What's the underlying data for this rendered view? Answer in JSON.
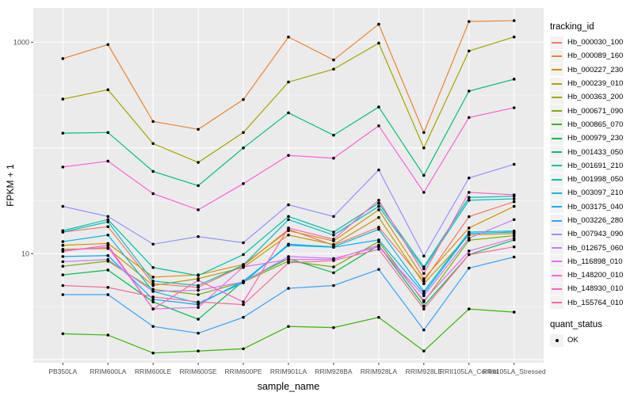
{
  "figure": {
    "background": "#FFFFFF",
    "panel_background": "#EBEBEB",
    "gridline_color": "#FFFFFF",
    "tick_color": "#333333",
    "tick_label_color": "#4D4D4D",
    "axis_title_color": "#000000",
    "point_color": "#000000",
    "legend_key_fill": "#F2F2F2"
  },
  "chart_data": {
    "type": "line",
    "title": "",
    "xlabel": "sample_name",
    "ylabel": "FPKM + 1",
    "y_scale": "log10",
    "ylim": [
      1,
      2200
    ],
    "grid": true,
    "legend_position": "right",
    "y_ticks": [
      {
        "label": "1000",
        "value": 1000
      },
      {
        "label": "10",
        "value": 10
      }
    ],
    "y_major_gridlines": [
      1,
      10,
      100,
      1000
    ],
    "y_minor_gridlines": [
      3.162,
      31.62,
      316.2
    ],
    "categories": [
      "PB350LA",
      "RRIM600LA",
      "RRIM600LE",
      "RRIM600SE",
      "RRIM600PE",
      "RRIM901LA",
      "RRIM928BA",
      "RRIM928LA",
      "RRIM928LE",
      "RRII105LA_Control",
      "RRII105LA_Stressed"
    ],
    "legend_title": "tracking_id",
    "series": [
      {
        "name": "Hb_000030_100",
        "color": "#F8766D",
        "values": [
          16,
          18,
          5.2,
          4.8,
          7.7,
          17,
          12,
          17.8,
          5.5,
          22.4,
          31
        ]
      },
      {
        "name": "Hb_000089_160",
        "color": "#EA8331",
        "values": [
          700,
          950,
          178,
          150,
          287,
          1120,
          680,
          1480,
          140,
          1570,
          1600
        ]
      },
      {
        "name": "Hb_000227_230",
        "color": "#D89000",
        "values": [
          12,
          12.5,
          6.0,
          6.3,
          7.9,
          16.5,
          13.2,
          26,
          5.8,
          17.5,
          28
        ]
      },
      {
        "name": "Hb_000239_010",
        "color": "#C09B00",
        "values": [
          11,
          11.2,
          5.0,
          5.8,
          7.4,
          15,
          12.2,
          22,
          5.2,
          15,
          15.5
        ]
      },
      {
        "name": "Hb_000363_200",
        "color": "#A3A500",
        "values": [
          290,
          355,
          110,
          73,
          140,
          420,
          556,
          980,
          100,
          826,
          1120
        ]
      },
      {
        "name": "Hb_000671_090",
        "color": "#7CAE00",
        "values": [
          7.6,
          8.5,
          4.6,
          4.1,
          5.4,
          8.5,
          7.5,
          13,
          3.5,
          13.4,
          14.8
        ]
      },
      {
        "name": "Hb_000865_070",
        "color": "#39B600",
        "values": [
          1.75,
          1.7,
          1.15,
          1.2,
          1.26,
          2.05,
          2.0,
          2.5,
          1.2,
          3.0,
          2.8
        ]
      },
      {
        "name": "Hb_000979_230",
        "color": "#00BB4E",
        "values": [
          6.3,
          7.0,
          3.5,
          2.4,
          5.5,
          9.0,
          6.6,
          12,
          3.2,
          9.8,
          13.5
        ]
      },
      {
        "name": "Hb_001433_050",
        "color": "#00BF7D",
        "values": [
          138,
          140,
          60,
          44,
          100,
          215,
          132,
          244,
          55,
          345,
          447
        ]
      },
      {
        "name": "Hb_001691_210",
        "color": "#00C1A3",
        "values": [
          16.5,
          21,
          7.4,
          6.2,
          9.8,
          22.5,
          16,
          30,
          7.5,
          34,
          35
        ]
      },
      {
        "name": "Hb_001998_050",
        "color": "#00BFC4",
        "values": [
          16,
          20,
          5.5,
          5.0,
          7.8,
          21,
          15,
          28,
          7.2,
          32,
          33
        ]
      },
      {
        "name": "Hb_003097_210",
        "color": "#00BAE0",
        "values": [
          13,
          15,
          4.4,
          3.4,
          5.3,
          12.3,
          11.6,
          17,
          4.4,
          16,
          16.4
        ]
      },
      {
        "name": "Hb_003175_040",
        "color": "#00B0F6",
        "values": [
          9.4,
          9.6,
          3.7,
          3.3,
          5.5,
          12.0,
          11.5,
          13.5,
          4.2,
          15.5,
          16
        ]
      },
      {
        "name": "Hb_003226_280",
        "color": "#35A2FF",
        "values": [
          4.1,
          4.1,
          2.05,
          1.77,
          2.5,
          4.7,
          5.0,
          7.1,
          1.9,
          7.3,
          9.3
        ]
      },
      {
        "name": "Hb_007943_090",
        "color": "#9590FF",
        "values": [
          28,
          22.5,
          12.3,
          14.5,
          12.7,
          29,
          22.5,
          62,
          9.5,
          52,
          70
        ]
      },
      {
        "name": "Hb_012675_060",
        "color": "#C77CFF",
        "values": [
          8.4,
          8.8,
          4.4,
          4.5,
          5.4,
          9.4,
          9.0,
          11.6,
          4.0,
          14,
          21
        ]
      },
      {
        "name": "Hb_116898_010",
        "color": "#E76BF3",
        "values": [
          10.7,
          11.5,
          3.0,
          3.1,
          7.5,
          8.8,
          8.8,
          12,
          3.6,
          10.6,
          14
        ]
      },
      {
        "name": "Hb_148200_010",
        "color": "#FA62DB",
        "values": [
          66,
          75,
          37,
          26,
          46,
          85,
          80,
          162,
          38,
          194,
          240
        ]
      },
      {
        "name": "Hb_148930_010",
        "color": "#FF62BC",
        "values": [
          10.5,
          12,
          3.0,
          5.6,
          3.5,
          17.5,
          13.7,
          32,
          6.5,
          38,
          36
        ]
      },
      {
        "name": "Hb_155764_010",
        "color": "#FF6A98",
        "values": [
          5.0,
          4.8,
          3.9,
          3.5,
          3.3,
          8.2,
          8.6,
          11,
          3.0,
          9.8,
          11.6
        ]
      }
    ],
    "quant_status": {
      "title": "quant_status",
      "items": [
        "OK"
      ]
    }
  }
}
